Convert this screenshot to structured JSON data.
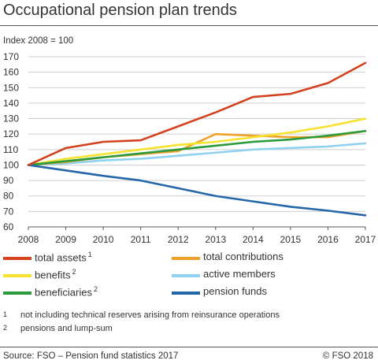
{
  "title": "Occupational pension plan trends",
  "subtitle": "Index 2008 = 100",
  "footnotes": [
    {
      "mark": "1",
      "text": "not including technical reserves arising from reinsurance operations"
    },
    {
      "mark": "2",
      "text": "pensions and lump-sum"
    }
  ],
  "source": "Source: FSO – Pension fund statistics 2017",
  "copyright": "© FSO 2018",
  "chart_data": {
    "type": "line",
    "title": "Occupational pension plan trends",
    "ylabel": "Index 2008 = 100",
    "x": [
      2008,
      2009,
      2010,
      2011,
      2012,
      2013,
      2014,
      2015,
      2016,
      2017
    ],
    "ylim": [
      60,
      170
    ],
    "yticks": [
      60,
      70,
      80,
      90,
      100,
      110,
      120,
      130,
      140,
      150,
      160,
      170
    ],
    "grid": true,
    "legend_position": "bottom",
    "series": [
      {
        "name": "total assets",
        "sup": "1",
        "color": "#d2421f",
        "values": [
          100,
          111,
          115,
          116,
          125,
          134,
          144,
          146,
          153,
          166
        ]
      },
      {
        "name": "total contributions",
        "sup": "",
        "color": "#f0a12c",
        "values": [
          100,
          102,
          105,
          107,
          109,
          120,
          119,
          118,
          118,
          122
        ]
      },
      {
        "name": "benefits",
        "sup": "2",
        "color": "#f5e330",
        "values": [
          100,
          104,
          107,
          110,
          113,
          115,
          118,
          121,
          125,
          130
        ]
      },
      {
        "name": "active members",
        "sup": "",
        "color": "#8fd1ee",
        "values": [
          100,
          101,
          103,
          104,
          106,
          108,
          110,
          111,
          112,
          114
        ]
      },
      {
        "name": "beneficiaries",
        "sup": "2",
        "color": "#2a9a3a",
        "values": [
          100,
          102.5,
          105,
          107.5,
          110,
          112.5,
          115,
          116.5,
          119,
          122
        ]
      },
      {
        "name": "pension funds",
        "sup": "",
        "color": "#2566a8",
        "values": [
          100,
          96.5,
          93,
          90,
          85,
          80,
          76.5,
          73,
          70.5,
          67.5
        ]
      }
    ]
  }
}
